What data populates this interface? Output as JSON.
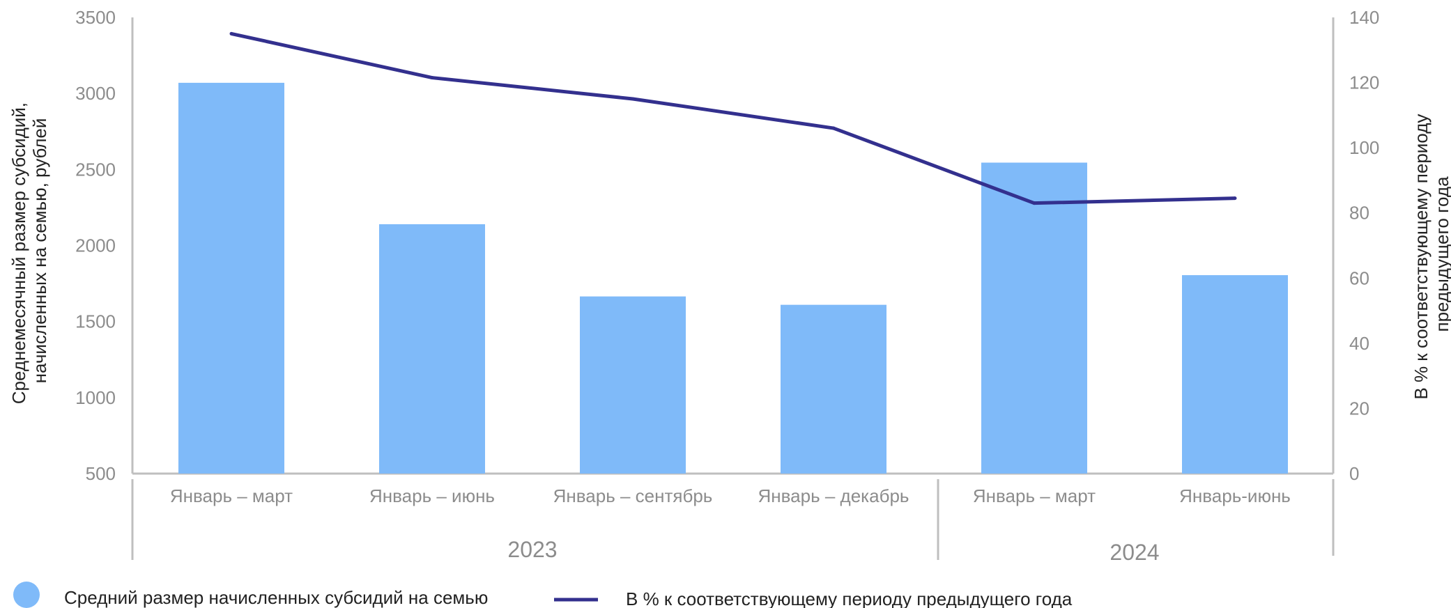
{
  "chart_data": {
    "type": "bar",
    "categories": [
      "Январь – март",
      "Январь – июнь",
      "Январь – сентябрь",
      "Январь – декабрь",
      "Январь – март",
      "Январь-июнь"
    ],
    "groups": [
      {
        "label": "2023",
        "count": 4
      },
      {
        "label": "2024",
        "count": 2
      }
    ],
    "series": [
      {
        "name": "Средний размер начисленных субсидий на семью",
        "type": "bar",
        "axis": "left",
        "color": "#7fbaf9",
        "values": [
          3070,
          2140,
          1665,
          1610,
          2545,
          1805
        ]
      },
      {
        "name": "В % к соответствующему периоду предыдущего года",
        "type": "line",
        "axis": "right",
        "color": "#33308e",
        "values": [
          135,
          121.5,
          115,
          106,
          83,
          84.5
        ]
      }
    ],
    "y_left": {
      "label_lines": [
        "Среднемесячный размер субсидий,",
        "начисленных на семью, рублей"
      ],
      "ylim": [
        500,
        3500
      ],
      "ticks": [
        "3500",
        "3000",
        "2500",
        "2000",
        "1500",
        "1000",
        "500"
      ]
    },
    "y_right": {
      "label_lines": [
        "В % к соответствующему периоду",
        "предыдущего года"
      ],
      "ylim": [
        0,
        140
      ],
      "ticks": [
        "140",
        "120",
        "100",
        "80",
        "60",
        "40",
        "20",
        "0"
      ]
    },
    "grid": false,
    "legend_position": "bottom"
  }
}
